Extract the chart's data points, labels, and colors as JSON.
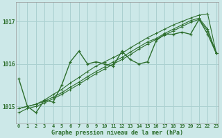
{
  "xlabel": "Graphe pression niveau de la mer (hPa)",
  "bg_color": "#cce8e8",
  "grid_color": "#aad0d0",
  "line_color": "#2d6e2d",
  "x_ticks": [
    0,
    1,
    2,
    3,
    4,
    5,
    6,
    7,
    8,
    9,
    10,
    11,
    12,
    13,
    14,
    15,
    16,
    17,
    18,
    19,
    20,
    21,
    22,
    23
  ],
  "y_ticks": [
    1015,
    1016,
    1017
  ],
  "ylim": [
    1014.6,
    1017.45
  ],
  "xlim": [
    -0.3,
    23.3
  ],
  "series": [
    [
      1015.65,
      1015.0,
      1014.85,
      1015.15,
      1015.1,
      1015.5,
      1016.05,
      1016.3,
      1016.0,
      1016.05,
      1016.0,
      1015.95,
      1016.3,
      1016.1,
      1016.0,
      1016.05,
      1016.55,
      1016.7,
      1016.7,
      1016.75,
      1016.7,
      1017.05,
      1016.7,
      1016.25
    ],
    [
      1014.95,
      1015.0,
      1015.05,
      1015.15,
      1015.28,
      1015.4,
      1015.55,
      1015.68,
      1015.82,
      1015.95,
      1016.05,
      1016.15,
      1016.25,
      1016.38,
      1016.5,
      1016.62,
      1016.72,
      1016.82,
      1016.92,
      1017.0,
      1017.08,
      1017.15,
      1017.18,
      1016.25
    ],
    [
      1014.95,
      1015.0,
      1015.05,
      1015.12,
      1015.22,
      1015.32,
      1015.45,
      1015.57,
      1015.7,
      1015.82,
      1015.93,
      1016.05,
      1016.15,
      1016.28,
      1016.4,
      1016.52,
      1016.6,
      1016.72,
      1016.82,
      1016.92,
      1017.02,
      1017.08,
      1016.82,
      1016.25
    ],
    [
      1014.85,
      1014.95,
      1015.0,
      1015.08,
      1015.18,
      1015.28,
      1015.4,
      1015.52,
      1015.65,
      1015.77,
      1015.88,
      1016.0,
      1016.1,
      1016.22,
      1016.35,
      1016.47,
      1016.58,
      1016.68,
      1016.78,
      1016.88,
      1016.98,
      1017.05,
      1016.78,
      1016.25
    ]
  ]
}
